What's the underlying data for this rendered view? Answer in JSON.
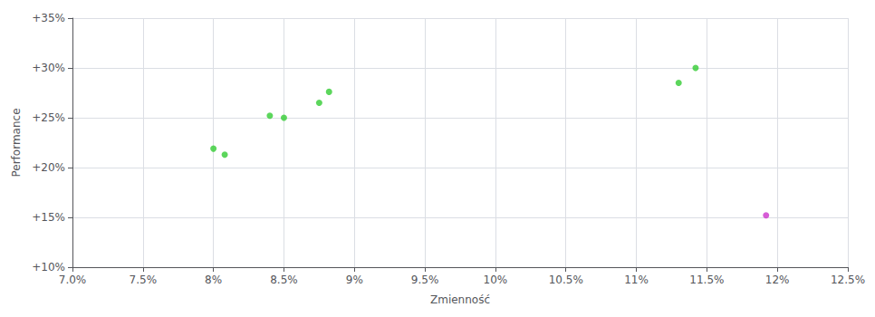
{
  "chart_data": {
    "type": "scatter",
    "xlabel": "Zmienność",
    "ylabel": "Performance",
    "xlim": [
      0.07,
      0.125
    ],
    "ylim": [
      0.1,
      0.35
    ],
    "xticks": [
      {
        "value": 0.07,
        "label": "7.0%"
      },
      {
        "value": 0.075,
        "label": "7.5%"
      },
      {
        "value": 0.08,
        "label": "8%"
      },
      {
        "value": 0.085,
        "label": "8.5%"
      },
      {
        "value": 0.09,
        "label": "9%"
      },
      {
        "value": 0.095,
        "label": "9.5%"
      },
      {
        "value": 0.1,
        "label": "10%"
      },
      {
        "value": 0.105,
        "label": "10.5%"
      },
      {
        "value": 0.11,
        "label": "11%"
      },
      {
        "value": 0.115,
        "label": "11.5%"
      },
      {
        "value": 0.12,
        "label": "12%"
      },
      {
        "value": 0.125,
        "label": "12.5%"
      }
    ],
    "yticks": [
      {
        "value": 0.1,
        "label": "+10%"
      },
      {
        "value": 0.15,
        "label": "+15%"
      },
      {
        "value": 0.2,
        "label": "+20%"
      },
      {
        "value": 0.25,
        "label": "+25%"
      },
      {
        "value": 0.3,
        "label": "+30%"
      },
      {
        "value": 0.35,
        "label": "+35%"
      }
    ],
    "grid": true,
    "series": [
      {
        "color": "#33cc33",
        "x": [
          0.08,
          0.0808,
          0.084,
          0.085,
          0.0875,
          0.0882,
          0.113,
          0.1142
        ],
        "values": [
          0.219,
          0.213,
          0.252,
          0.25,
          0.265,
          0.276,
          0.285,
          0.3
        ]
      },
      {
        "color": "#cc33cc",
        "x": [
          0.1192
        ],
        "values": [
          0.152
        ]
      }
    ]
  }
}
